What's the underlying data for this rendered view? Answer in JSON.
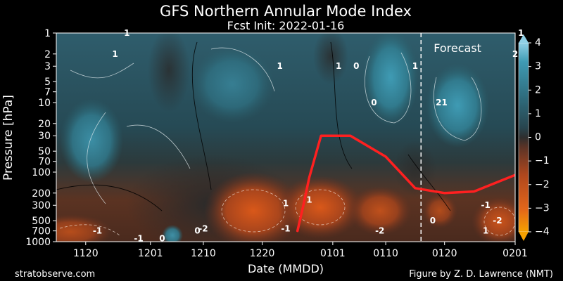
{
  "chart_data": {
    "type": "heatmap",
    "title": "GFS Northern Annular Mode Index",
    "subtitle": "Fcst Init: 2022-01-16",
    "xlabel": "Date (MMDD)",
    "ylabel": "Pressure [hPa]",
    "x_ticks": [
      "1120",
      "1201",
      "1210",
      "1220",
      "0101",
      "0110",
      "0120",
      "0201"
    ],
    "y_ticks": [
      1000,
      700,
      500,
      300,
      200,
      100,
      70,
      50,
      30,
      20,
      10,
      7,
      5,
      3,
      2,
      1
    ],
    "y_scale": "log",
    "ylim": [
      1000,
      1
    ],
    "colorbar": {
      "ticks": [
        -4,
        -3,
        -2,
        -1,
        0,
        1,
        2,
        3,
        4
      ],
      "range": [
        -4,
        4
      ],
      "negative_color": "#d24a10",
      "zero_color": "#2e2e2e",
      "positive_color": "#3f9bb4"
    },
    "annotation": "Forecast",
    "forecast_start": "0116",
    "contour_labels": [
      "1",
      "1",
      "1",
      "1",
      "0",
      "1",
      "1",
      "2",
      "0",
      "1",
      "-1",
      "-2",
      "0",
      "-1",
      "1",
      "-1",
      "-2",
      "1",
      "0",
      "-1",
      "-2",
      "1",
      "0",
      "2"
    ],
    "highlight_series": {
      "x": [
        "1226",
        "1227",
        "1228",
        "1230",
        "0104",
        "0110",
        "0115",
        "0120",
        "0125",
        "0201"
      ],
      "y": [
        700,
        300,
        120,
        30,
        30,
        60,
        170,
        200,
        190,
        110
      ],
      "color": "#ff2020"
    }
  },
  "credits": {
    "left": "stratobserve.com",
    "right": "Figure by Z. D. Lawrence (NMT)"
  }
}
